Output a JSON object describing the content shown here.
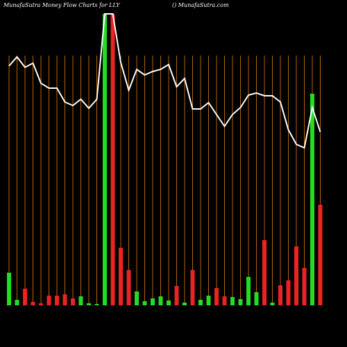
{
  "chart_data": {
    "type": "bar",
    "title": "MunafaSutra  Money Flow  Charts for LLY",
    "subtitle": "() MunafaSutra.com",
    "categories": [
      null,
      null,
      null,
      null,
      null,
      null,
      null,
      null,
      null,
      null,
      null,
      null,
      null,
      null,
      null,
      null,
      null,
      null,
      null,
      null,
      null,
      null,
      null,
      null,
      null,
      null,
      null,
      null,
      null,
      null,
      null,
      null,
      null,
      null,
      null,
      null,
      null,
      null,
      null,
      null
    ],
    "values": [
      47,
      8,
      24,
      5,
      3,
      14,
      14,
      16,
      10,
      13,
      3,
      2,
      420,
      420,
      83,
      51,
      20,
      6,
      10,
      13,
      7,
      28,
      4,
      51,
      8,
      14,
      25,
      13,
      12,
      9,
      41,
      19,
      94,
      4,
      29,
      36,
      85,
      54,
      305,
      145
    ],
    "bar_colors": [
      "#22dd22",
      "#22dd22",
      "#ee2222",
      "#ee2222",
      "#ee2222",
      "#ee2222",
      "#ee2222",
      "#ee2222",
      "#ee2222",
      "#22dd22",
      "#22dd22",
      "#22dd22",
      "#22dd22",
      "#ee2222",
      "#ee2222",
      "#ee2222",
      "#22dd22",
      "#22dd22",
      "#22dd22",
      "#22dd22",
      "#22dd22",
      "#ee2222",
      "#22dd22",
      "#ee2222",
      "#22dd22",
      "#22dd22",
      "#ee2222",
      "#ee2222",
      "#22dd22",
      "#22dd22",
      "#22dd22",
      "#22dd22",
      "#ee2222",
      "#22dd22",
      "#ee2222",
      "#ee2222",
      "#ee2222",
      "#ee2222",
      "#22dd22",
      "#ee2222"
    ],
    "line_values": [
      345,
      358,
      343,
      349,
      320,
      313,
      313,
      293,
      288,
      297,
      284,
      297,
      420,
      420,
      350,
      310,
      340,
      332,
      337,
      340,
      347,
      315,
      327,
      283,
      283,
      292,
      275,
      258,
      275,
      285,
      303,
      306,
      302,
      302,
      293,
      253,
      232,
      227,
      285,
      250
    ],
    "line_color": "#ffffff",
    "grid_color": "#b8650a",
    "ylim": [
      0,
      420
    ]
  }
}
